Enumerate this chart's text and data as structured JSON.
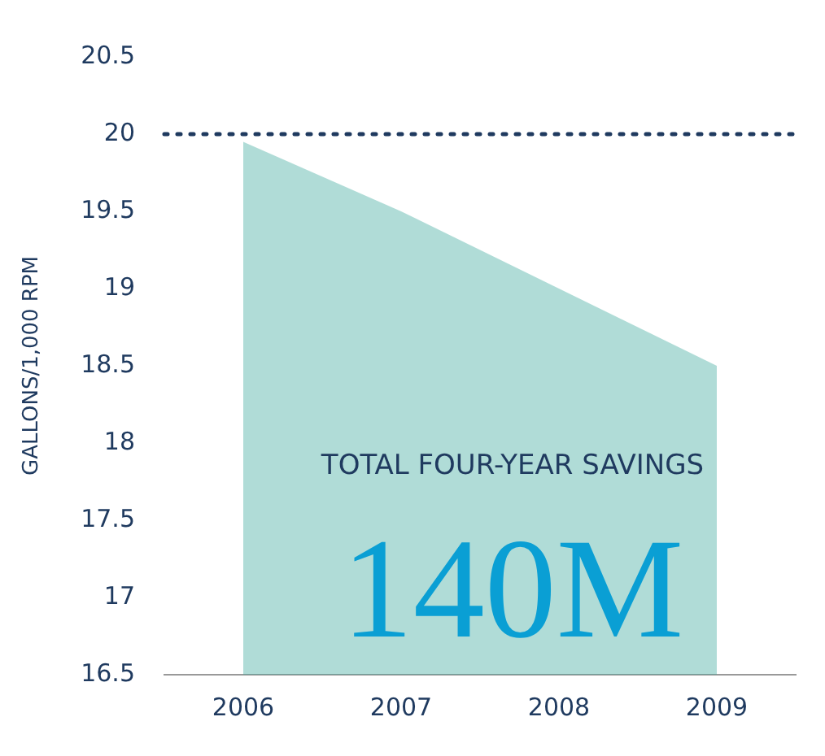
{
  "chart_data": {
    "type": "area",
    "ylabel": "GALLONS/1,000 RPM",
    "categories": [
      "2006",
      "2007",
      "2008",
      "2009"
    ],
    "series": [
      {
        "color": "#3aa79b",
        "values": [
          19.95,
          19.5,
          19.0,
          18.5
        ]
      }
    ],
    "ylim": [
      16.5,
      20.5
    ],
    "yticks": [
      16.5,
      17,
      17.5,
      18,
      18.5,
      19,
      19.5,
      20,
      20.5
    ],
    "grid": false,
    "legend": false,
    "ref_lines": [
      {
        "axis": "y",
        "value": 20,
        "color": "#1f3a5f",
        "line_style": "dotted"
      }
    ],
    "annotations": [
      "TOTAL FOUR-YEAR SAVINGS",
      "140M"
    ]
  }
}
